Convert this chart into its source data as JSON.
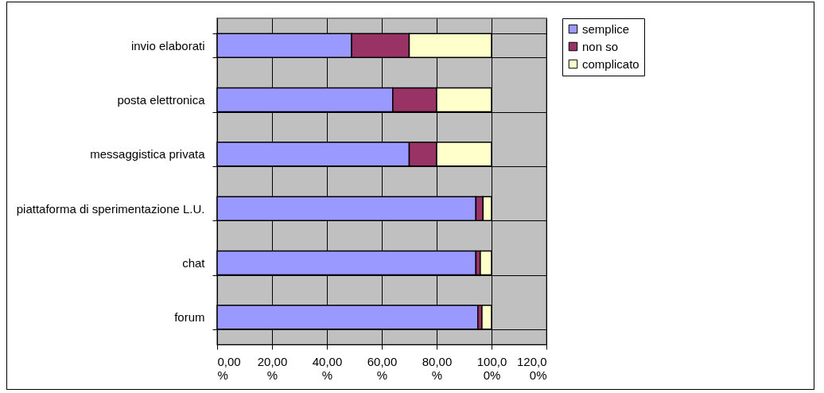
{
  "chart_data": {
    "type": "bar",
    "orientation": "horizontal",
    "stacked": true,
    "categories": [
      "invio elaborati",
      "posta elettronica",
      "messaggistica privata",
      "piattaforma di sperimentazione L.U.",
      "chat",
      "forum"
    ],
    "series": [
      {
        "name": "semplice",
        "color": "#9999ff",
        "values": [
          49,
          64,
          70,
          94.3,
          94.3,
          95
        ]
      },
      {
        "name": "non so",
        "color": "#993366",
        "values": [
          21,
          16,
          10,
          2.6,
          1.6,
          1.5
        ]
      },
      {
        "name": "complicato",
        "color": "#ffffcc",
        "values": [
          30,
          20,
          20,
          3.1,
          4.1,
          3.5
        ]
      }
    ],
    "xlim": [
      0,
      120
    ],
    "xticks": [
      {
        "value": 0,
        "label": "0,00%"
      },
      {
        "value": 20,
        "label": "20,00%"
      },
      {
        "value": 40,
        "label": "40,00%"
      },
      {
        "value": 60,
        "label": "60,00%"
      },
      {
        "value": 80,
        "label": "80,00%"
      },
      {
        "value": 100,
        "label": "100,00%"
      },
      {
        "value": 120,
        "label": "120,00%"
      }
    ],
    "grid": true,
    "legend": "right"
  }
}
